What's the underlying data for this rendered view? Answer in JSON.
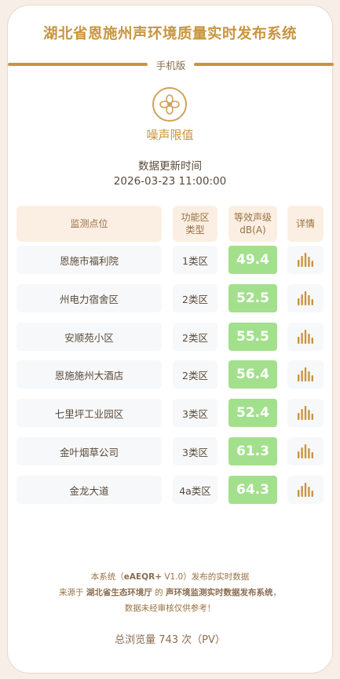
{
  "header": {
    "title": "湖北省恩施州声环境质量实时发布系统",
    "mobile_label": "手机版"
  },
  "noise": {
    "icon": "flower-icon",
    "label": "噪声限值"
  },
  "update": {
    "label": "数据更新时间",
    "time": "2026-03-23 11:00:00"
  },
  "table": {
    "headers": {
      "site": "监测点位",
      "zone_line1": "功能区",
      "zone_line2": "类型",
      "level_line1": "等效声级",
      "level_line2": "dB(A)",
      "detail": "详情"
    },
    "rows": [
      {
        "site": "恩施市福利院",
        "zone": "1类区",
        "value": "49.4"
      },
      {
        "site": "州电力宿舍区",
        "zone": "2类区",
        "value": "52.5"
      },
      {
        "site": "安顺苑小区",
        "zone": "2类区",
        "value": "55.5"
      },
      {
        "site": "恩施施州大酒店",
        "zone": "2类区",
        "value": "56.4"
      },
      {
        "site": "七里坪工业园区",
        "zone": "3类区",
        "value": "52.4"
      },
      {
        "site": "金叶烟草公司",
        "zone": "3类区",
        "value": "61.3"
      },
      {
        "site": "金龙大道",
        "zone": "4a类区",
        "value": "64.3"
      }
    ],
    "value_color": "#a3e08d",
    "detail_icon": "bar-chart-icon"
  },
  "footer": {
    "line1_pre": "本系统（",
    "line1_sys": "eAEQR+",
    "line1_post": " V1.0）发布的实时数据",
    "line2_pre": "来源于 ",
    "line2_org": "湖北省生态环境厅",
    "line2_mid": " 的 ",
    "line2_sys": "声环境监测实时数据发布系统",
    "line2_post": "，",
    "line3": "数据未经审核仅供参考！",
    "pv": "总浏览量 743 次（PV）"
  },
  "colors": {
    "accent": "#c8953f",
    "header_bg": "#fbefe3",
    "cell_bg": "#f7f8fa"
  }
}
